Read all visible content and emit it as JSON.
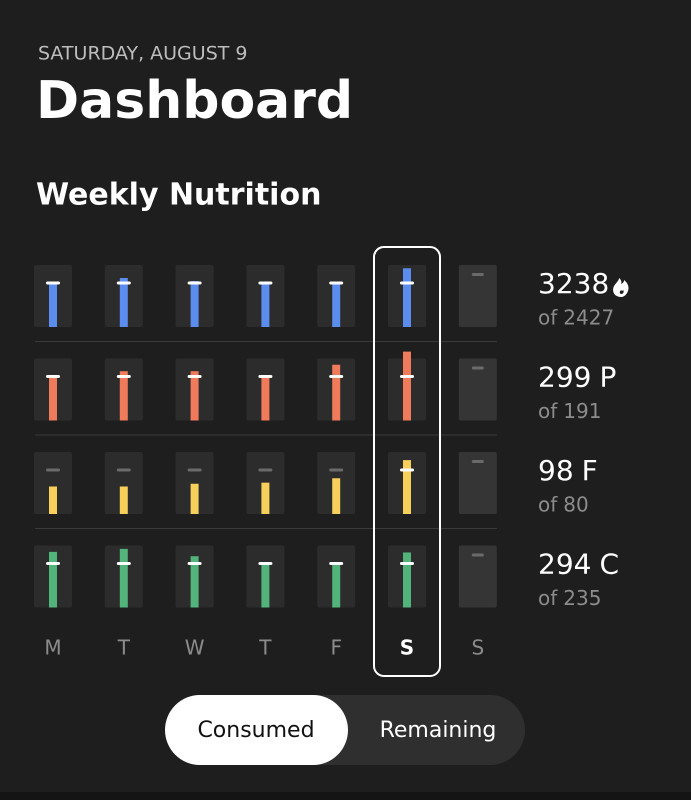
{
  "header": {
    "date": "SATURDAY, AUGUST 9",
    "title": "Dashboard"
  },
  "section_title": "Weekly Nutrition",
  "days": [
    "M",
    "T",
    "W",
    "T",
    "F",
    "S",
    "S"
  ],
  "selected_day": 5,
  "goal_prefix": "of",
  "rows": [
    {
      "color": "#5b8def",
      "values": [
        2427,
        2703,
        2537,
        2482,
        2482,
        3238,
        null
      ],
      "goal": 2427
    },
    {
      "color": "#f07b5a",
      "unit": "P",
      "values": [
        196,
        214,
        214,
        196,
        242,
        299,
        null
      ],
      "goal": 191
    },
    {
      "color": "#f7cf5b",
      "unit": "F",
      "values": [
        50,
        50,
        55,
        57,
        65,
        98,
        null
      ],
      "goal": 80
    },
    {
      "color": "#52b47a",
      "unit": "C",
      "values": [
        297,
        313,
        274,
        235,
        235,
        294,
        null
      ],
      "goal": 235
    }
  ],
  "toggle": {
    "options": [
      "Consumed",
      "Remaining"
    ],
    "selected": 0
  }
}
